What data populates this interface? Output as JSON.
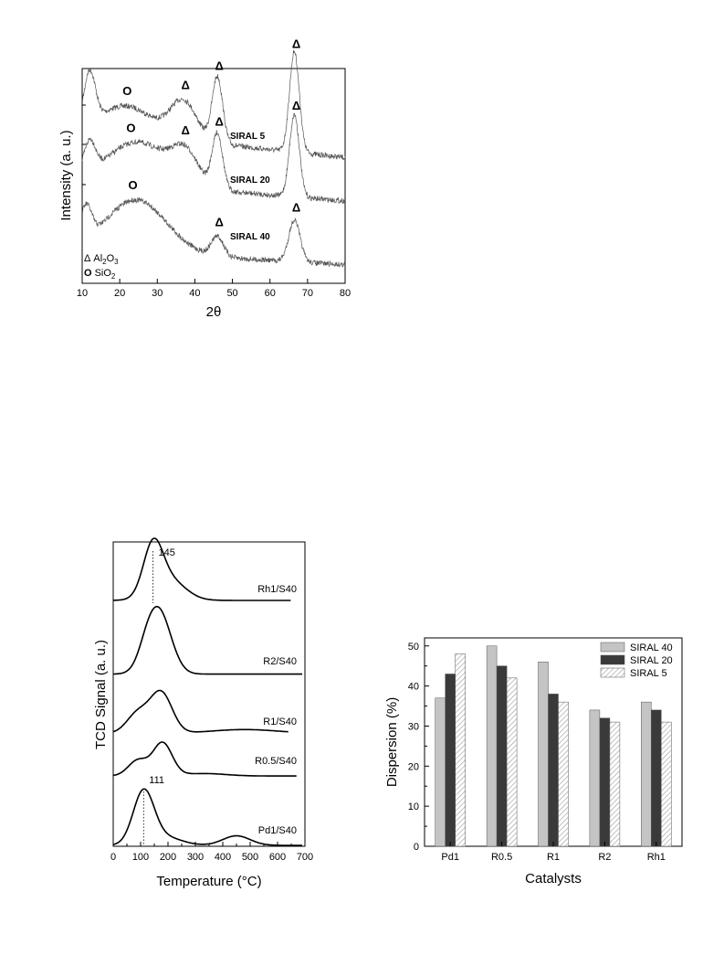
{
  "chart_data": [
    {
      "type": "line",
      "xlabel": "2θ",
      "ylabel": "Intensity (a. u.)",
      "xlim": [
        10,
        80
      ],
      "xticks": [
        "10",
        "20",
        "30",
        "40",
        "50",
        "60",
        "70",
        "80"
      ],
      "legend": [
        {
          "symbol": "Δ",
          "label_parts": [
            "Al",
            "2",
            "O",
            "3"
          ]
        },
        {
          "symbol": "O",
          "label_parts": [
            "SiO",
            "2"
          ]
        }
      ],
      "series": [
        {
          "name": "SIRAL 5",
          "baseline": 0.44,
          "slope": 0.004,
          "peaks": [
            [
              12,
              0.5,
              1.5
            ],
            [
              22,
              0.28,
              7
            ],
            [
              37,
              0.38,
              3.5
            ],
            [
              46,
              0.66,
              1.4
            ],
            [
              66.5,
              1.0,
              1.3
            ]
          ],
          "markers": [
            {
              "symbol": "O",
              "x": 22
            },
            {
              "symbol": "Δ",
              "x": 37.5
            },
            {
              "symbol": "Δ",
              "x": 46.5
            },
            {
              "symbol": "Δ",
              "x": 67
            }
          ]
        },
        {
          "name": "SIRAL 20",
          "baseline": 0.32,
          "slope": 0.003,
          "peaks": [
            [
              12,
              0.3,
              1.5
            ],
            [
              25,
              0.42,
              8
            ],
            [
              37.5,
              0.3,
              3.5
            ],
            [
              46,
              0.55,
              1.4
            ],
            [
              66.5,
              0.82,
              1.3
            ]
          ],
          "markers": [
            {
              "symbol": "O",
              "x": 23
            },
            {
              "symbol": "Δ",
              "x": 37.5
            },
            {
              "symbol": "Δ",
              "x": 46.5
            },
            {
              "symbol": "Δ",
              "x": 67
            }
          ]
        },
        {
          "name": "SIRAL 40",
          "baseline": 0.16,
          "slope": 0.002,
          "peaks": [
            [
              11,
              0.3,
              1.5
            ],
            [
              24.5,
              0.48,
              8
            ],
            [
              46,
              0.18,
              1.6
            ],
            [
              66.5,
              0.38,
              1.5
            ]
          ],
          "markers": [
            {
              "symbol": "O",
              "x": 23.5
            },
            {
              "symbol": "Δ",
              "x": 46.5
            },
            {
              "symbol": "Δ",
              "x": 67
            }
          ]
        }
      ]
    },
    {
      "type": "line",
      "xlabel": "Temperature (°C)",
      "ylabel": "TCD Signal (a. u.)",
      "xlim": [
        0,
        700
      ],
      "xticks": [
        "0",
        "100",
        "200",
        "300",
        "400",
        "500",
        "600",
        "700"
      ],
      "annotations": [
        {
          "text": "145",
          "x": 145
        },
        {
          "text": "111",
          "x": 111
        }
      ],
      "series": [
        {
          "name": "Rh1/S40",
          "baseline": 0.02,
          "end": 650,
          "peaks": [
            [
              145,
              1.0,
              35
            ],
            [
              200,
              0.45,
              60
            ]
          ]
        },
        {
          "name": "R2/S40",
          "baseline": 0.02,
          "end": 690,
          "peaks": [
            [
              165,
              1.0,
              45
            ],
            [
              120,
              0.15,
              30
            ]
          ]
        },
        {
          "name": "R1/S40",
          "baseline": 0.03,
          "end": 640,
          "peaks": [
            [
              175,
              0.85,
              40
            ],
            [
              90,
              0.42,
              40
            ],
            [
              480,
              0.08,
              120
            ]
          ]
        },
        {
          "name": "R0.5/S40",
          "baseline": 0.02,
          "end": 670,
          "peaks": [
            [
              180,
              0.8,
              35
            ],
            [
              90,
              0.38,
              35
            ],
            [
              330,
              0.06,
              80
            ]
          ]
        },
        {
          "name": "Pd1/S40",
          "baseline": 0.0,
          "end": 690,
          "peaks": [
            [
              111,
              1.0,
              38
            ],
            [
              190,
              0.15,
              60
            ],
            [
              450,
              0.18,
              50
            ]
          ]
        }
      ]
    },
    {
      "type": "bar",
      "xlabel": "Catalysts",
      "ylabel": "Dispersion (%)",
      "ylim": [
        0,
        52
      ],
      "yticks": [
        "0",
        "10",
        "20",
        "30",
        "40",
        "50"
      ],
      "categories": [
        "Pd1",
        "R0.5",
        "R1",
        "R2",
        "Rh1"
      ],
      "legend_position": "top-right",
      "series": [
        {
          "name": "SIRAL 40",
          "color": "#c4c4c4",
          "values": [
            37,
            50,
            46,
            34,
            36
          ]
        },
        {
          "name": "SIRAL 20",
          "color": "#3a3a3a",
          "values": [
            43,
            45,
            38,
            32,
            34
          ]
        },
        {
          "name": "SIRAL 5",
          "color": "#ffffff",
          "pattern": "hatch",
          "values": [
            48,
            42,
            36,
            31,
            31
          ]
        }
      ]
    }
  ]
}
